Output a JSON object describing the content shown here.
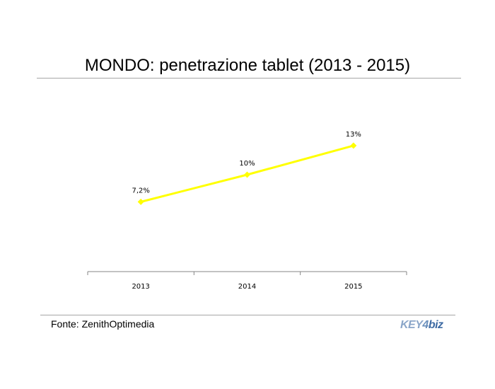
{
  "title": "MONDO: penetrazione tablet (2013 - 2015)",
  "source": "Fonte: ZenithOptimedia",
  "logo": {
    "part1": "KEY",
    "part2": "4",
    "part3": "biz"
  },
  "colors": {
    "line": "#ffff00",
    "axis": "#868686",
    "rule": "#a6a6a6"
  },
  "chart_data": {
    "type": "line",
    "title": "MONDO: penetrazione tablet (2013 - 2015)",
    "categories": [
      "2013",
      "2014",
      "2015"
    ],
    "series": [
      {
        "values": [
          7.2,
          10,
          13
        ],
        "labels": [
          "7,2%",
          "10%",
          "13%"
        ],
        "marker": "diamond"
      }
    ],
    "ylim": [
      0,
      20
    ],
    "grid": false,
    "legend": "none"
  }
}
